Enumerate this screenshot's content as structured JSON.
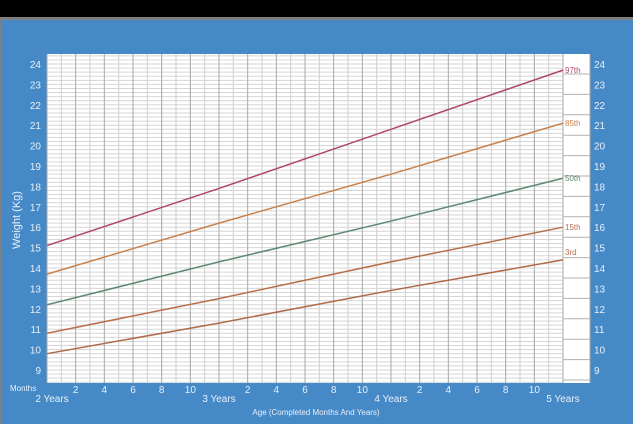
{
  "chart": {
    "y_axis_title": "Weight (Kg)",
    "x_axis_title": "Age (Completed Months And Years)",
    "months_label": "Months",
    "y_ticks": [
      "24",
      "23",
      "22",
      "21",
      "20",
      "19",
      "18",
      "17",
      "16",
      "15",
      "14",
      "13",
      "12",
      "11",
      "10",
      "9"
    ],
    "month_ticks": [
      "2",
      "4",
      "6",
      "8",
      "10"
    ],
    "year_labels": [
      "2 Years",
      "3 Years",
      "4 Years",
      "5 Years"
    ],
    "percentile_labels": [
      "97th",
      "85th",
      "50th",
      "15th",
      "3rd"
    ]
  },
  "colors": {
    "background": "#4589c7",
    "p97": "#b0466e",
    "p85": "#c8804a",
    "p50": "#5f8a72",
    "p15": "#b86e4a",
    "p3": "#b06a4a"
  },
  "chart_data": {
    "type": "line",
    "title": "",
    "xlabel": "Age (Completed Months And Years)",
    "ylabel": "Weight (Kg)",
    "x": [
      "2 Years",
      "3 Years",
      "4 Years",
      "5 Years"
    ],
    "x_months_range": [
      24,
      60
    ],
    "ylim": [
      9,
      24
    ],
    "grid": true,
    "legend_position": "right (inline labels at line ends)",
    "series": [
      {
        "name": "97th",
        "values": [
          15.1,
          17.9,
          20.8,
          23.7
        ]
      },
      {
        "name": "85th",
        "values": [
          13.7,
          16.2,
          18.6,
          21.1
        ]
      },
      {
        "name": "50th",
        "values": [
          12.2,
          14.3,
          16.3,
          18.4
        ]
      },
      {
        "name": "15th",
        "values": [
          10.8,
          12.5,
          14.3,
          16.0
        ]
      },
      {
        "name": "3rd",
        "values": [
          9.8,
          11.3,
          12.9,
          14.4
        ]
      }
    ]
  }
}
